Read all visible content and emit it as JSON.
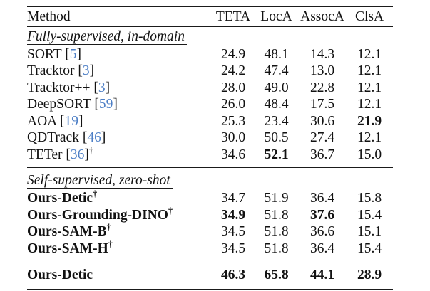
{
  "table": {
    "cite_open": " [",
    "cite_close": "]",
    "colors": {
      "citation_link": "#4d7fc6",
      "text": "#121212",
      "background": "#ffffff"
    },
    "header": {
      "method": "Method",
      "cols": [
        "TETA",
        "LocA",
        "AssocA",
        "ClsA"
      ]
    },
    "sections": [
      {
        "label": "Fully-supervised, in-domain"
      },
      {
        "label": "Self-supervised, zero-shot"
      }
    ],
    "rows": [
      {
        "method": "SORT",
        "cite": "5",
        "values": [
          "24.9",
          "48.1",
          "14.3",
          "12.1"
        ],
        "value_styles": [
          "plain",
          "plain",
          "plain",
          "plain"
        ]
      },
      {
        "method": "Tracktor",
        "cite": "3",
        "values": [
          "24.2",
          "47.4",
          "13.0",
          "12.1"
        ],
        "value_styles": [
          "plain",
          "plain",
          "plain",
          "plain"
        ]
      },
      {
        "method": "Tracktor++",
        "cite": "3",
        "values": [
          "28.0",
          "49.0",
          "22.8",
          "12.1"
        ],
        "value_styles": [
          "plain",
          "plain",
          "plain",
          "plain"
        ]
      },
      {
        "method": "DeepSORT",
        "cite": "59",
        "values": [
          "26.0",
          "48.4",
          "17.5",
          "12.1"
        ],
        "value_styles": [
          "plain",
          "plain",
          "plain",
          "plain"
        ]
      },
      {
        "method": "AOA",
        "cite": "19",
        "values": [
          "25.3",
          "23.4",
          "30.6",
          "21.9"
        ],
        "value_styles": [
          "plain",
          "plain",
          "plain",
          "bold"
        ]
      },
      {
        "method": "QDTrack",
        "cite": "46",
        "values": [
          "30.0",
          "50.5",
          "27.4",
          "12.1"
        ],
        "value_styles": [
          "plain",
          "plain",
          "plain",
          "plain"
        ]
      },
      {
        "method": "TETer",
        "cite": "36",
        "dagger": "†",
        "values": [
          "34.6",
          "52.1",
          "36.7",
          "15.0"
        ],
        "value_styles": [
          "plain",
          "bold",
          "underline",
          "plain"
        ]
      },
      {
        "method": "Ours-Detic",
        "dagger": "†",
        "method_bold": true,
        "values": [
          "34.7",
          "51.9",
          "36.4",
          "15.8"
        ],
        "value_styles": [
          "underline",
          "underline",
          "plain",
          "underline"
        ]
      },
      {
        "method": "Ours-Grounding-DINO",
        "dagger": "†",
        "method_bold": true,
        "values": [
          "34.9",
          "51.8",
          "37.6",
          "15.4"
        ],
        "value_styles": [
          "bold",
          "plain",
          "bold",
          "plain"
        ]
      },
      {
        "method": "Ours-SAM-B",
        "dagger": "†",
        "method_bold": true,
        "values": [
          "34.5",
          "51.8",
          "36.6",
          "15.1"
        ],
        "value_styles": [
          "plain",
          "plain",
          "plain",
          "plain"
        ]
      },
      {
        "method": "Ours-SAM-H",
        "dagger": "†",
        "method_bold": true,
        "values": [
          "34.5",
          "51.8",
          "36.4",
          "15.4"
        ],
        "value_styles": [
          "plain",
          "plain",
          "plain",
          "plain"
        ]
      },
      {
        "method": "Ours-Detic",
        "method_bold": true,
        "values": [
          "46.3",
          "65.8",
          "44.1",
          "28.9"
        ],
        "value_styles": [
          "bold",
          "bold",
          "bold",
          "bold"
        ]
      }
    ]
  }
}
